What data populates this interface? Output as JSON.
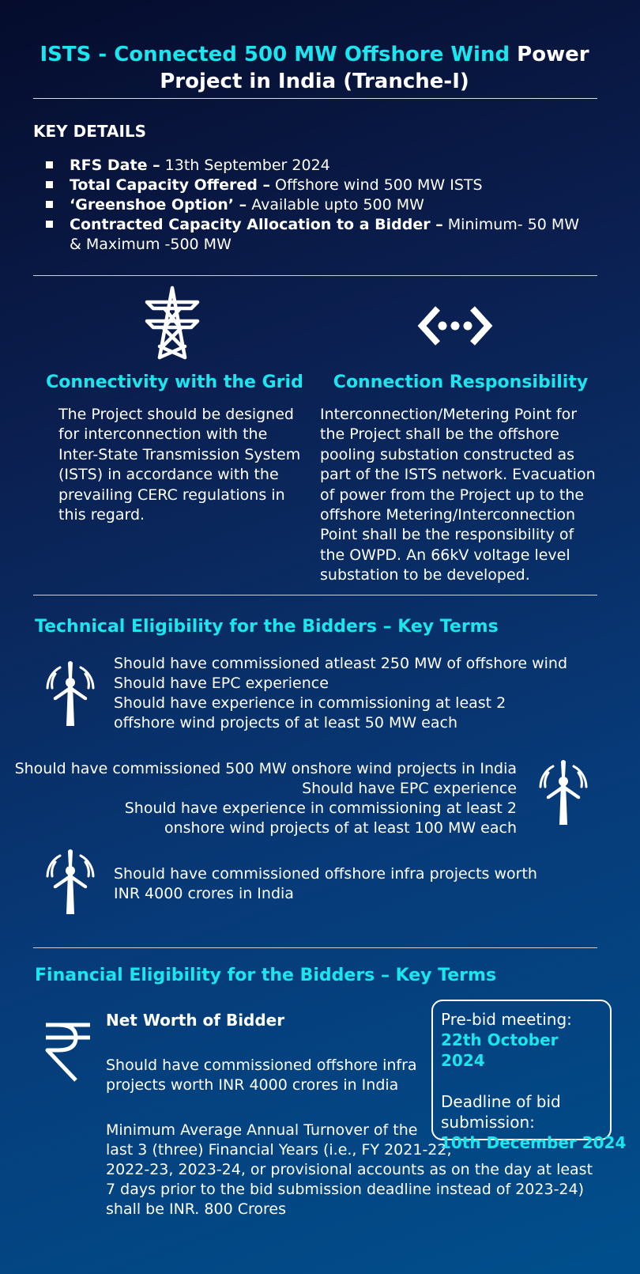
{
  "title": {
    "highlight": "ISTS - Connected 500 MW Offshore Wind",
    "rest_line1": "Power",
    "line2": "Project in India (Tranche-I)"
  },
  "key_details": {
    "heading": "KEY DETAILS",
    "items": [
      {
        "label": "RFS Date –",
        "value": "13th September 2024"
      },
      {
        "label": "Total Capacity Offered –",
        "value": "Offshore wind 500 MW ISTS"
      },
      {
        "label": "‘Greenshoe Option’ –",
        "value": "Available upto 500 MW"
      },
      {
        "label": "Contracted Capacity Allocation to a Bidder –",
        "value": "Minimum- 50 MW & Maximum -500 MW"
      }
    ]
  },
  "connectivity": {
    "icon": "transmission-tower-icon",
    "heading": "Connectivity with the Grid",
    "lines": [
      "The Project should be designed",
      "for interconnection with the",
      "Inter-State Transmission System",
      "(ISTS) in accordance with the",
      "prevailing CERC regulations in",
      "this regard."
    ]
  },
  "responsibility": {
    "icon": "connection-icon",
    "heading": "Connection Responsibility",
    "lines": [
      "Interconnection/Metering Point for",
      "the Project shall be the offshore",
      "pooling substation constructed as",
      "part of the ISTS network. Evacuation",
      "of power from the Project up to the",
      "offshore Metering/Interconnection",
      "Point shall be the responsibility of",
      "the OWPD. An 66kV voltage level",
      "substation to be developed."
    ]
  },
  "technical": {
    "heading": "Technical Eligibility for the Bidders – Key Terms",
    "group1": [
      "Should have commissioned atleast 250 MW of offshore wind",
      "Should have EPC experience",
      "Should have experience in commissioning at least 2",
      "offshore wind projects of at least 50 MW each"
    ],
    "group2": [
      "Should have commissioned 500 MW onshore wind projects in India",
      "Should have EPC experience",
      "Should have experience in commissioning at least 2",
      "onshore wind projects of at least 100 MW each"
    ],
    "group3": [
      "Should have commissioned offshore infra projects worth",
      "INR 4000 crores in India"
    ]
  },
  "financial": {
    "heading": "Financial Eligibility for the Bidders – Key Terms",
    "net_worth_label": "Net Worth of Bidder",
    "para1": [
      "Should have commissioned offshore infra",
      "projects worth INR 4000 crores in India"
    ],
    "para2": [
      "Minimum Average Annual Turnover of the",
      "last 3 (three) Financial Years (i.e., FY 2021-22,",
      "2022-23, 2023-24, or provisional accounts as on the day at least",
      "7 days prior to the bid submission deadline instead of 2023-24)",
      "shall be INR. 800 Crores"
    ]
  },
  "dates_box": {
    "prebid_label": "Pre-bid meeting:",
    "prebid_date": "22th October 2024",
    "deadline_label_1": "Deadline of  bid",
    "deadline_label_2": "submission:",
    "deadline_date": "10th December 2024"
  },
  "colors": {
    "accent": "#19e6ee",
    "text": "#ffffff",
    "bg_top": "#050c2c",
    "bg_bottom": "#004f8c"
  }
}
